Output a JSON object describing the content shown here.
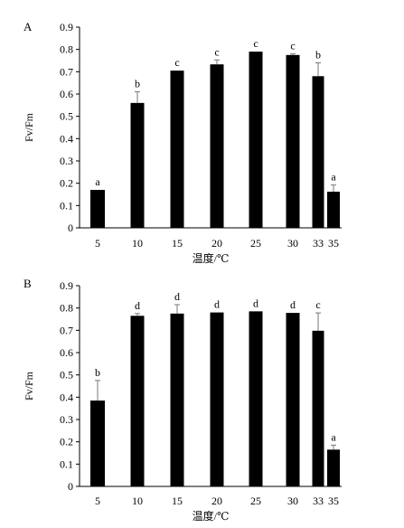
{
  "chart_data": [
    {
      "type": "bar",
      "panel_label": "A",
      "categories": [
        "5",
        "10",
        "15",
        "20",
        "25",
        "30",
        "33",
        "35"
      ],
      "x": [
        5,
        10,
        15,
        20,
        25,
        30,
        33,
        35
      ],
      "values": [
        0.17,
        0.56,
        0.705,
        0.733,
        0.79,
        0.775,
        0.68,
        0.162
      ],
      "error": [
        0.0,
        0.05,
        0.0,
        0.02,
        0.0,
        0.005,
        0.06,
        0.03
      ],
      "letters": [
        "a",
        "b",
        "c",
        "c",
        "c",
        "c",
        "b",
        "a"
      ],
      "xlabel": "温度/℃",
      "ylabel": "Fv/Fm",
      "ylim": [
        0,
        0.9
      ],
      "yticks": [
        "0",
        "0.1",
        "0.2",
        "0.3",
        "0.4",
        "0.5",
        "0.6",
        "0.7",
        "0.8",
        "0.9"
      ],
      "grid": false,
      "legend": "none"
    },
    {
      "type": "bar",
      "panel_label": "B",
      "categories": [
        "5",
        "10",
        "15",
        "20",
        "25",
        "30",
        "33",
        "35"
      ],
      "x": [
        5,
        10,
        15,
        20,
        25,
        30,
        33,
        35
      ],
      "values": [
        0.385,
        0.765,
        0.775,
        0.78,
        0.785,
        0.778,
        0.698,
        0.165
      ],
      "error": [
        0.09,
        0.01,
        0.04,
        0.0,
        0.0,
        0.0,
        0.08,
        0.02
      ],
      "letters": [
        "b",
        "d",
        "d",
        "d",
        "d",
        "d",
        "c",
        "a"
      ],
      "xlabel": "温度/℃",
      "ylabel": "Fv/Fm",
      "ylim": [
        0,
        0.9
      ],
      "yticks": [
        "0",
        "0.1",
        "0.2",
        "0.3",
        "0.4",
        "0.5",
        "0.6",
        "0.7",
        "0.8",
        "0.9"
      ],
      "grid": false,
      "legend": "none"
    }
  ],
  "colors": {
    "bar": "#000000",
    "axis": "#000000",
    "errorbar": "#777777"
  }
}
